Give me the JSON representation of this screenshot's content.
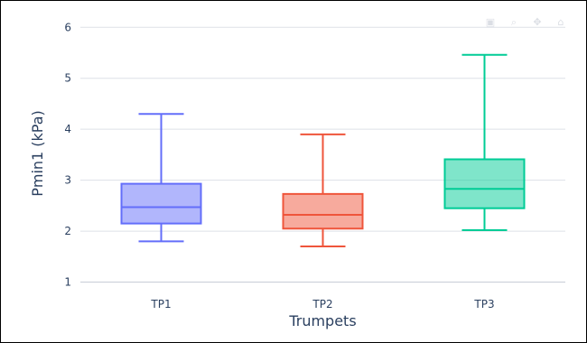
{
  "chart_data": {
    "type": "box",
    "xlabel": "Trumpets",
    "ylabel": "Pmin1 (kPa)",
    "ylim": [
      0.85,
      6.2
    ],
    "yticks": [
      1,
      2,
      3,
      4,
      5,
      6
    ],
    "grid": true,
    "categories": [
      "TP1",
      "TP2",
      "TP3"
    ],
    "series": [
      {
        "category": "TP1",
        "min": 1.8,
        "q1": 2.15,
        "median": 2.47,
        "q3": 2.93,
        "max": 4.3,
        "color": "#636efa"
      },
      {
        "category": "TP2",
        "min": 1.7,
        "q1": 2.05,
        "median": 2.32,
        "q3": 2.73,
        "max": 3.9,
        "color": "#ef553b"
      },
      {
        "category": "TP3",
        "min": 2.02,
        "q1": 2.45,
        "median": 2.83,
        "q3": 3.41,
        "max": 5.46,
        "color": "#00cc96"
      }
    ]
  },
  "modebar": [
    "camera-icon",
    "zoom-icon",
    "pan-icon",
    "home-icon"
  ]
}
